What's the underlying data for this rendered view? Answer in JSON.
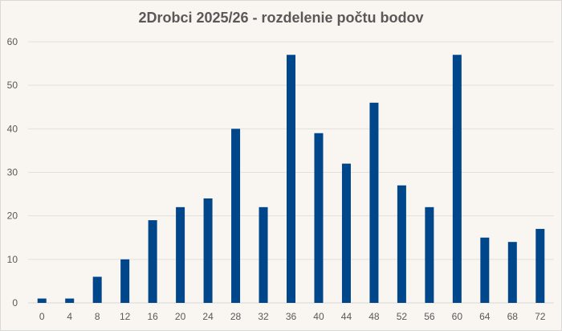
{
  "chart_data": {
    "type": "bar",
    "title": "2Drobci 2025/26 - rozdelenie počtu bodov",
    "xlabel": "",
    "ylabel": "",
    "categories": [
      "0",
      "4",
      "8",
      "12",
      "16",
      "20",
      "24",
      "28",
      "32",
      "36",
      "40",
      "44",
      "48",
      "52",
      "56",
      "60",
      "64",
      "68",
      "72"
    ],
    "values": [
      1,
      1,
      6,
      10,
      19,
      22,
      24,
      40,
      22,
      57,
      39,
      32,
      46,
      27,
      22,
      57,
      15,
      14,
      17
    ],
    "ylim": [
      0,
      60
    ],
    "yticks": [
      0,
      10,
      20,
      30,
      40,
      50,
      60
    ],
    "grid": true,
    "legend": "none",
    "bar_color": "#00468b",
    "background": "#f9f5f0"
  }
}
